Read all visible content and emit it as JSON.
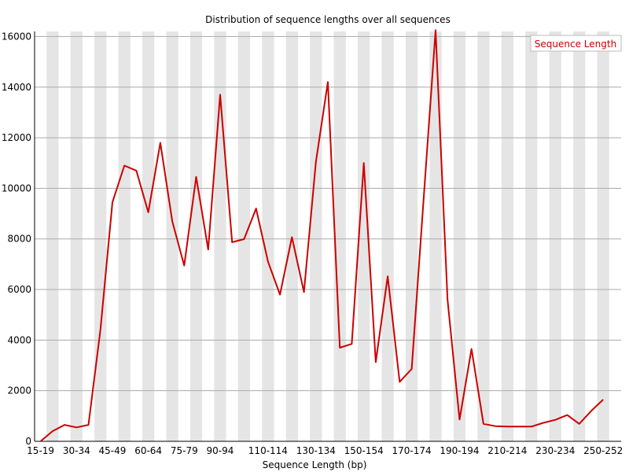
{
  "chart_data": {
    "type": "line",
    "title": "Distribution of sequence lengths over all sequences",
    "xlabel": "Sequence Length (bp)",
    "ylabel": "",
    "ylim": [
      0,
      16200
    ],
    "yticks": [
      0,
      2000,
      4000,
      6000,
      8000,
      10000,
      12000,
      14000,
      16000
    ],
    "grid": true,
    "legend_position": "top-right",
    "line_color": "#cc0000",
    "band_color": "#e5e5e5",
    "gridline_color": "#aaaaaa",
    "categories": [
      "15-19",
      "20-24",
      "25-29",
      "30-34",
      "35-39",
      "40-44",
      "45-49",
      "50-54",
      "55-59",
      "60-64",
      "65-69",
      "70-74",
      "75-79",
      "80-84",
      "85-89",
      "90-94",
      "95-99",
      "100-104",
      "105-109",
      "110-114",
      "115-119",
      "120-124",
      "125-129",
      "130-134",
      "135-139",
      "140-144",
      "145-149",
      "150-154",
      "155-159",
      "160-164",
      "165-169",
      "170-174",
      "175-179",
      "180-184",
      "185-189",
      "190-194",
      "195-199",
      "200-204",
      "205-209",
      "210-214",
      "215-219",
      "220-224",
      "225-229",
      "230-234",
      "235-239",
      "240-244",
      "245-249",
      "250-252"
    ],
    "visible_tick_indices": [
      0,
      3,
      6,
      9,
      12,
      15,
      19,
      23,
      27,
      31,
      35,
      39,
      43,
      47
    ],
    "series": [
      {
        "name": "Sequence Length",
        "values": [
          0,
          400,
          650,
          550,
          650,
          4400,
          9450,
          10900,
          10700,
          9050,
          11800,
          8700,
          6950,
          10450,
          7580,
          13700,
          7870,
          7990,
          9200,
          7100,
          5800,
          8070,
          5900,
          11050,
          14200,
          3700,
          3850,
          11000,
          3130,
          6520,
          2350,
          2860,
          9580,
          16250,
          5600,
          860,
          3650,
          690,
          600,
          580,
          580,
          580,
          730,
          850,
          1040,
          690,
          1200,
          1650
        ]
      }
    ]
  }
}
